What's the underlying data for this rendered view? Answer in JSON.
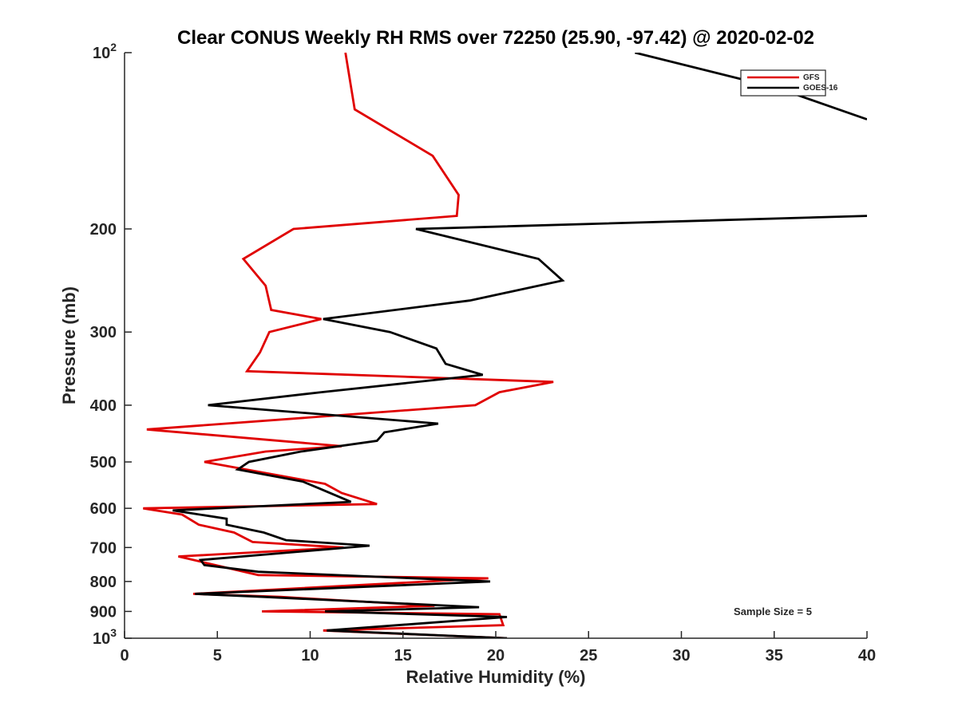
{
  "chart_data": {
    "type": "line",
    "title": "Clear CONUS Weekly RH RMS over 72250 (25.90, -97.42) @ 2020-02-02",
    "xlabel": "Relative Humidity (%)",
    "ylabel": "Pressure (mb)",
    "xlim": [
      0,
      40
    ],
    "ylim": [
      100,
      1000
    ],
    "y_scale": "log",
    "y_reversed": true,
    "x_ticks": [
      "0",
      "5",
      "10",
      "15",
      "20",
      "25",
      "30",
      "35",
      "40"
    ],
    "y_ticks": [
      {
        "value": 100,
        "base": "10",
        "exp": "2"
      },
      {
        "value": 200,
        "label": "200"
      },
      {
        "value": 300,
        "label": "300"
      },
      {
        "value": 400,
        "label": "400"
      },
      {
        "value": 500,
        "label": "500"
      },
      {
        "value": 600,
        "label": "600"
      },
      {
        "value": 700,
        "label": "700"
      },
      {
        "value": 800,
        "label": "800"
      },
      {
        "value": 900,
        "label": "900"
      },
      {
        "value": 1000,
        "base": "10",
        "exp": "3"
      }
    ],
    "grid": false,
    "legend_position": "top-right",
    "annotation": "Sample Size = 5",
    "series": [
      {
        "name": "GFS",
        "color": "#e00000",
        "points": [
          [
            11.9,
            100
          ],
          [
            12.4,
            125
          ],
          [
            16.6,
            150
          ],
          [
            18.0,
            175
          ],
          [
            17.9,
            190
          ],
          [
            9.1,
            200
          ],
          [
            6.4,
            225
          ],
          [
            7.6,
            250
          ],
          [
            7.9,
            275
          ],
          [
            10.6,
            285
          ],
          [
            7.8,
            300
          ],
          [
            7.3,
            325
          ],
          [
            6.6,
            350
          ],
          [
            23.1,
            365
          ],
          [
            20.2,
            380
          ],
          [
            18.9,
            400
          ],
          [
            1.2,
            440
          ],
          [
            11.7,
            470
          ],
          [
            7.6,
            480
          ],
          [
            4.3,
            500
          ],
          [
            10.8,
            545
          ],
          [
            11.7,
            565
          ],
          [
            13.6,
            590
          ],
          [
            1.0,
            600
          ],
          [
            3.1,
            615
          ],
          [
            4.0,
            640
          ],
          [
            5.9,
            660
          ],
          [
            6.9,
            685
          ],
          [
            11.8,
            700
          ],
          [
            2.9,
            725
          ],
          [
            7.2,
            780
          ],
          [
            19.6,
            790
          ],
          [
            3.7,
            840
          ],
          [
            8.4,
            850
          ],
          [
            16.7,
            880
          ],
          [
            7.4,
            900
          ],
          [
            20.2,
            910
          ],
          [
            20.4,
            950
          ],
          [
            10.7,
            970
          ],
          [
            20.6,
            1000
          ]
        ]
      },
      {
        "name": "GOES-16",
        "color": "#000000",
        "points": [
          [
            27.5,
            100
          ],
          [
            35.2,
            115
          ],
          [
            40.0,
            130
          ],
          [
            null,
            150
          ],
          [
            40.0,
            190
          ],
          [
            15.7,
            200
          ],
          [
            22.3,
            225
          ],
          [
            23.6,
            245
          ],
          [
            18.6,
            265
          ],
          [
            10.7,
            285
          ],
          [
            14.3,
            300
          ],
          [
            16.8,
            320
          ],
          [
            17.3,
            340
          ],
          [
            19.3,
            355
          ],
          [
            10.6,
            380
          ],
          [
            4.5,
            400
          ],
          [
            12.9,
            420
          ],
          [
            16.9,
            430
          ],
          [
            14.0,
            445
          ],
          [
            13.6,
            460
          ],
          [
            9.5,
            480
          ],
          [
            6.7,
            500
          ],
          [
            6.1,
            515
          ],
          [
            9.6,
            540
          ],
          [
            10.5,
            555
          ],
          [
            12.2,
            585
          ],
          [
            2.6,
            605
          ],
          [
            5.5,
            625
          ],
          [
            5.5,
            640
          ],
          [
            7.5,
            660
          ],
          [
            8.7,
            680
          ],
          [
            13.2,
            695
          ],
          [
            4.1,
            735
          ],
          [
            4.3,
            750
          ],
          [
            7.2,
            770
          ],
          [
            19.7,
            800
          ],
          [
            3.8,
            840
          ],
          [
            7.5,
            850
          ],
          [
            19.1,
            885
          ],
          [
            10.8,
            900
          ],
          [
            20.6,
            920
          ],
          [
            10.9,
            970
          ],
          [
            20.6,
            1000
          ]
        ]
      }
    ]
  }
}
